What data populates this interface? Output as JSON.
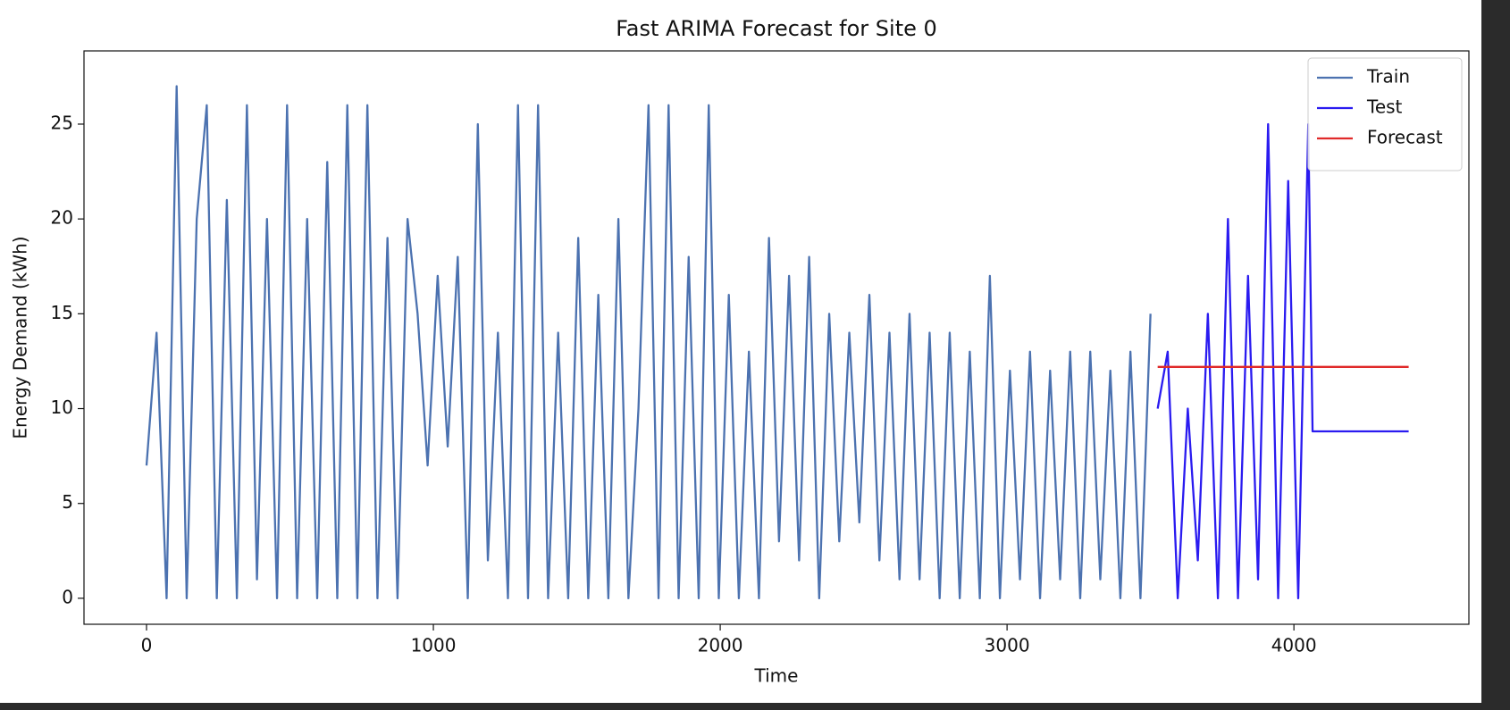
{
  "chart_data": {
    "type": "line",
    "title": "Fast ARIMA Forecast for Site 0",
    "x_label": "Time",
    "y_label": "Energy Demand (kWh)",
    "xlim": [
      -218,
      4610
    ],
    "xticks": [
      0,
      1000,
      2000,
      3000,
      4000
    ],
    "ylim": [
      -1.37,
      28.86
    ],
    "yticks": [
      0,
      5,
      10,
      15,
      20,
      25
    ],
    "legend": "upper right",
    "series": [
      {
        "name": "Train",
        "color": "#4c72b0",
        "x": [
          0,
          35,
          70,
          105,
          140,
          175,
          210,
          245,
          280,
          315,
          350,
          385,
          420,
          455,
          490,
          525,
          560,
          595,
          630,
          665,
          700,
          735,
          770,
          805,
          840,
          875,
          910,
          945,
          980,
          1015,
          1050,
          1085,
          1120,
          1155,
          1190,
          1225,
          1260,
          1295,
          1330,
          1365,
          1400,
          1435,
          1470,
          1505,
          1540,
          1575,
          1610,
          1645,
          1680,
          1715,
          1750,
          1785,
          1820,
          1855,
          1890,
          1925,
          1960,
          1995,
          2030,
          2065,
          2100,
          2135,
          2170,
          2205,
          2240,
          2275,
          2310,
          2345,
          2380,
          2415,
          2450,
          2485,
          2520,
          2555,
          2590,
          2625,
          2660,
          2695,
          2730,
          2765,
          2800,
          2835,
          2870,
          2905,
          2940,
          2975,
          3010,
          3045,
          3080,
          3115,
          3150,
          3185,
          3220,
          3255,
          3290,
          3325,
          3360,
          3395,
          3430,
          3465,
          3500
        ],
        "values": [
          7,
          14,
          0,
          27,
          0,
          20,
          26,
          0,
          21,
          0,
          26,
          1,
          20,
          0,
          26,
          0,
          20,
          0,
          23,
          0,
          26,
          0,
          26,
          0,
          19,
          0,
          20,
          15,
          7,
          17,
          8,
          18,
          0,
          25,
          2,
          14,
          0,
          26,
          0,
          26,
          0,
          14,
          0,
          19,
          0,
          16,
          0,
          20,
          0,
          10,
          26,
          0,
          26,
          0,
          18,
          0,
          26,
          0,
          16,
          0,
          13,
          0,
          19,
          3,
          17,
          2,
          18,
          0,
          15,
          3,
          14,
          4,
          16,
          2,
          14,
          1,
          15,
          1,
          14,
          0,
          14,
          0,
          13,
          0,
          17,
          0,
          12,
          1,
          13,
          0,
          12,
          1,
          13,
          0,
          13,
          1,
          12,
          0,
          13,
          0,
          15
        ]
      },
      {
        "name": "Test",
        "color": "#2a1bf0",
        "x": [
          3525,
          3560,
          3595,
          3630,
          3665,
          3700,
          3735,
          3770,
          3805,
          3840,
          3875,
          3910,
          3945,
          3980,
          4015,
          4050,
          4065,
          4400
        ],
        "values": [
          10,
          13,
          0,
          10,
          2,
          15,
          0,
          20,
          0,
          17,
          1,
          25,
          0,
          22,
          0,
          25,
          8.8,
          8.8
        ]
      },
      {
        "name": "Forecast",
        "color": "#e02a2a",
        "x": [
          3525,
          4400
        ],
        "values": [
          12.2,
          12.2
        ]
      }
    ]
  }
}
